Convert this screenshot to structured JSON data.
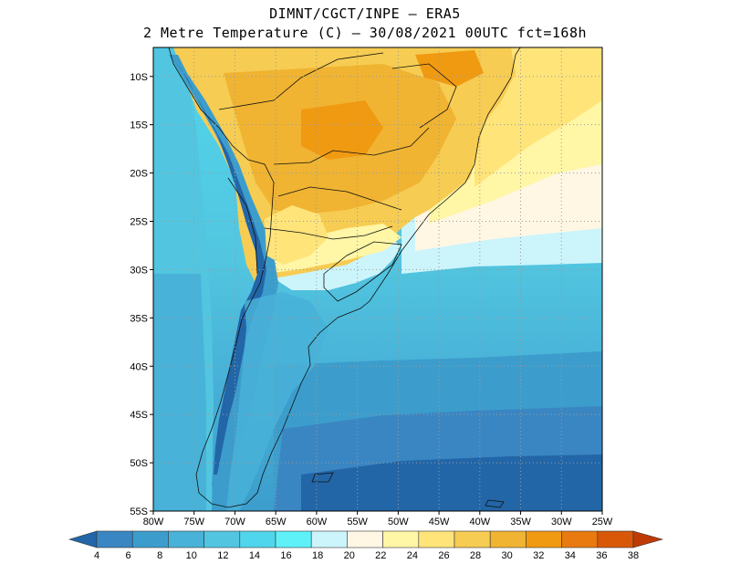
{
  "title": {
    "line1": "DIMNT/CGCT/INPE –  ERA5",
    "line2": "2 Metre Temperature (C) –  30/08/2021 00UTC fct=168h"
  },
  "map": {
    "lon_range": [
      -80,
      -25
    ],
    "lat_range": [
      -55,
      -7
    ],
    "lat_ticks": [
      {
        "value": -10,
        "label": "10S"
      },
      {
        "value": -15,
        "label": "15S"
      },
      {
        "value": -20,
        "label": "20S"
      },
      {
        "value": -25,
        "label": "25S"
      },
      {
        "value": -30,
        "label": "30S"
      },
      {
        "value": -35,
        "label": "35S"
      },
      {
        "value": -40,
        "label": "40S"
      },
      {
        "value": -45,
        "label": "45S"
      },
      {
        "value": -50,
        "label": "50S"
      },
      {
        "value": -55,
        "label": "55S"
      }
    ],
    "lon_ticks": [
      {
        "value": -80,
        "label": "80W"
      },
      {
        "value": -75,
        "label": "75W"
      },
      {
        "value": -70,
        "label": "70W"
      },
      {
        "value": -65,
        "label": "65W"
      },
      {
        "value": -60,
        "label": "60W"
      },
      {
        "value": -55,
        "label": "55W"
      },
      {
        "value": -50,
        "label": "50W"
      },
      {
        "value": -45,
        "label": "45W"
      },
      {
        "value": -40,
        "label": "40W"
      },
      {
        "value": -35,
        "label": "35W"
      },
      {
        "value": -30,
        "label": "30W"
      },
      {
        "value": -25,
        "label": "25W"
      }
    ]
  },
  "colorbar": {
    "labels": [
      "4",
      "6",
      "8",
      "10",
      "12",
      "14",
      "16",
      "18",
      "20",
      "22",
      "24",
      "26",
      "28",
      "30",
      "32",
      "34",
      "36",
      "38"
    ],
    "colors": [
      "#2266a8",
      "#3a86c2",
      "#3c9dcc",
      "#48b2d8",
      "#52c6e0",
      "#50d6ec",
      "#5ef2f8",
      "#ccf4fb",
      "#fff7e4",
      "#fff6a6",
      "#ffe47a",
      "#f6cc52",
      "#f0b432",
      "#f09a12",
      "#e87a10",
      "#d85808",
      "#c03a04"
    ]
  }
}
